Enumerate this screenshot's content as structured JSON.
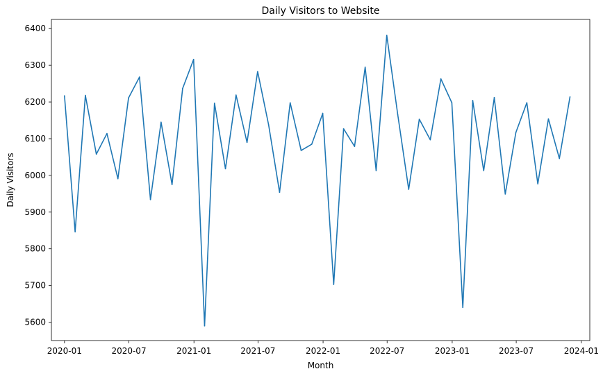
{
  "chart_data": {
    "type": "line",
    "title": "Daily Visitors to Website",
    "xlabel": "Month",
    "ylabel": "Daily Visitors",
    "ylim": [
      5550,
      6425
    ],
    "xlim": [
      "2019-11-25",
      "2024-01-25"
    ],
    "grid": false,
    "legend": "none",
    "x_ticks": [
      "2020-01",
      "2020-07",
      "2021-01",
      "2021-07",
      "2022-01",
      "2022-07",
      "2023-01",
      "2023-07",
      "2024-01"
    ],
    "y_ticks": [
      5600,
      5700,
      5800,
      5900,
      6000,
      6100,
      6200,
      6300,
      6400
    ],
    "series": [
      {
        "color": "#1f77b4",
        "x": [
          "2020-01-01",
          "2020-01-31",
          "2020-02-29",
          "2020-03-31",
          "2020-04-30",
          "2020-05-31",
          "2020-06-30",
          "2020-07-31",
          "2020-08-31",
          "2020-09-30",
          "2020-10-31",
          "2020-11-30",
          "2020-12-31",
          "2021-01-31",
          "2021-02-28",
          "2021-03-31",
          "2021-04-30",
          "2021-05-31",
          "2021-06-30",
          "2021-07-31",
          "2021-08-31",
          "2021-09-30",
          "2021-10-31",
          "2021-11-30",
          "2021-12-31",
          "2022-01-31",
          "2022-02-28",
          "2022-03-31",
          "2022-04-30",
          "2022-05-31",
          "2022-06-30",
          "2022-07-31",
          "2022-08-31",
          "2022-09-30",
          "2022-10-31",
          "2022-11-30",
          "2022-12-31",
          "2023-01-31",
          "2023-02-28",
          "2023-03-31",
          "2023-04-30",
          "2023-05-31",
          "2023-06-30",
          "2023-07-31",
          "2023-08-31",
          "2023-09-30",
          "2023-10-31",
          "2023-11-30"
        ],
        "values": [
          6217,
          5846,
          6218,
          6058,
          6114,
          5991,
          6211,
          6268,
          5934,
          6145,
          5975,
          6237,
          6316,
          5590,
          6197,
          6018,
          6219,
          6090,
          6283,
          6138,
          5954,
          6198,
          6068,
          6085,
          6169,
          5703,
          6127,
          6079,
          6295,
          6013,
          6382,
          6166,
          5962,
          6153,
          6097,
          6263,
          6198,
          5640,
          6204,
          6013,
          6212,
          5949,
          6117,
          6198,
          5977,
          6154,
          6046,
          6214
        ]
      }
    ]
  }
}
